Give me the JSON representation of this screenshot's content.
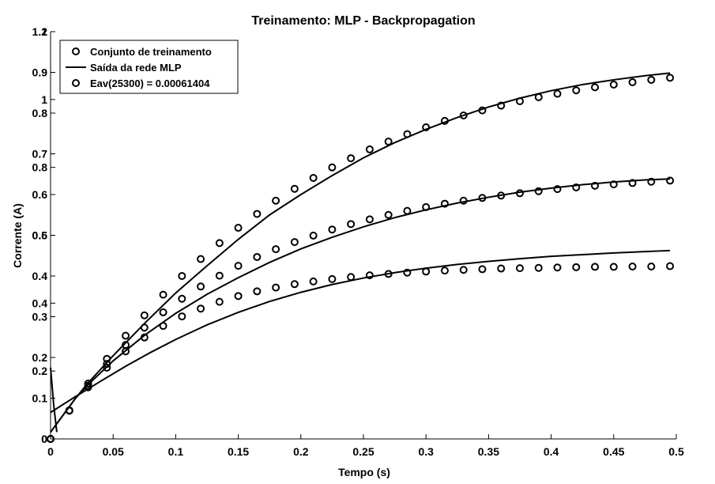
{
  "chart_data": {
    "type": "scatter",
    "title": "Treinamento: MLP - Backpropagation",
    "xlabel": "Tempo (s)",
    "ylabel": "Corrente (A)",
    "xlim": [
      0,
      0.5
    ],
    "ylim_left": [
      0,
      1.2
    ],
    "ylim_overlay": [
      0,
      1.0
    ],
    "xticks": [
      "0",
      "0.05",
      "0.1",
      "0.15",
      "0.2",
      "0.25",
      "0.3",
      "0.35",
      "0.4",
      "0.45",
      "0.5"
    ],
    "yticks_left": [
      "0",
      "0.2",
      "0.4",
      "0.6",
      "0.8",
      "1",
      "1.2"
    ],
    "yticks_overlay": [
      "0",
      "0.1",
      "0.2",
      "0.3",
      "0.4",
      "0.5",
      "0.6",
      "0.7",
      "0.8",
      "0.9",
      "1"
    ],
    "grid": false,
    "legend_position": "top-left",
    "legend": [
      {
        "label": "Conjunto de treinamento",
        "marker": "circle"
      },
      {
        "label": "Saída da rede MLP",
        "marker": "line"
      },
      {
        "label": "Eav(25300) = 0.00061404",
        "marker": "circle"
      }
    ],
    "series": [
      {
        "kind": "points",
        "x": [
          0,
          0.015,
          0.03,
          0.045,
          0.06,
          0.075,
          0.09,
          0.105,
          0.12,
          0.135,
          0.15,
          0.165,
          0.18,
          0.195,
          0.21,
          0.225,
          0.24,
          0.255,
          0.27,
          0.285,
          0.3,
          0.315,
          0.33,
          0.345,
          0.36,
          0.375,
          0.39,
          0.405,
          0.42,
          0.435,
          0.45,
          0.465,
          0.48,
          0.495
        ],
        "y": [
          0,
          0.084,
          0.163,
          0.236,
          0.304,
          0.364,
          0.425,
          0.48,
          0.53,
          0.577,
          0.622,
          0.663,
          0.702,
          0.737,
          0.769,
          0.8,
          0.827,
          0.853,
          0.876,
          0.898,
          0.918,
          0.937,
          0.953,
          0.968,
          0.982,
          0.995,
          1.007,
          1.017,
          1.027,
          1.036,
          1.044,
          1.051,
          1.058,
          1.064
        ]
      },
      {
        "kind": "points",
        "x": [
          0,
          0.015,
          0.03,
          0.045,
          0.06,
          0.075,
          0.09,
          0.105,
          0.12,
          0.135,
          0.15,
          0.165,
          0.18,
          0.195,
          0.21,
          0.225,
          0.24,
          0.255,
          0.27,
          0.285,
          0.3,
          0.315,
          0.33,
          0.345,
          0.36,
          0.375,
          0.39,
          0.405,
          0.42,
          0.435,
          0.45,
          0.465,
          0.48,
          0.495
        ],
        "y": [
          0,
          0.084,
          0.157,
          0.221,
          0.277,
          0.328,
          0.373,
          0.413,
          0.449,
          0.481,
          0.51,
          0.536,
          0.559,
          0.58,
          0.599,
          0.617,
          0.633,
          0.647,
          0.66,
          0.672,
          0.683,
          0.693,
          0.702,
          0.71,
          0.717,
          0.724,
          0.73,
          0.736,
          0.741,
          0.746,
          0.75,
          0.754,
          0.758,
          0.761
        ]
      },
      {
        "kind": "points",
        "x": [
          0,
          0.015,
          0.03,
          0.045,
          0.06,
          0.075,
          0.09,
          0.105,
          0.12,
          0.135,
          0.15,
          0.165,
          0.18,
          0.195,
          0.21,
          0.225,
          0.24,
          0.255,
          0.27,
          0.285,
          0.3,
          0.315,
          0.33,
          0.345,
          0.36,
          0.375,
          0.39,
          0.405,
          0.42,
          0.435,
          0.45,
          0.465,
          0.48,
          0.495
        ],
        "y": [
          0,
          0.083,
          0.152,
          0.21,
          0.258,
          0.299,
          0.333,
          0.361,
          0.384,
          0.404,
          0.421,
          0.435,
          0.446,
          0.456,
          0.464,
          0.471,
          0.477,
          0.482,
          0.486,
          0.49,
          0.493,
          0.496,
          0.498,
          0.5,
          0.502,
          0.503,
          0.504,
          0.505,
          0.506,
          0.507,
          0.507,
          0.508,
          0.508,
          0.509
        ]
      },
      {
        "kind": "line",
        "x": [
          0,
          0.01,
          0.02,
          0.03,
          0.05,
          0.075,
          0.1,
          0.125,
          0.15,
          0.175,
          0.2,
          0.225,
          0.25,
          0.275,
          0.3,
          0.325,
          0.35,
          0.375,
          0.4,
          0.425,
          0.45,
          0.475,
          0.495
        ],
        "y": [
          0.02,
          0.07,
          0.12,
          0.165,
          0.245,
          0.34,
          0.43,
          0.51,
          0.588,
          0.66,
          0.72,
          0.776,
          0.828,
          0.873,
          0.912,
          0.947,
          0.978,
          1.004,
          1.026,
          1.044,
          1.058,
          1.07,
          1.078
        ]
      },
      {
        "kind": "line",
        "x": [
          0,
          0.01,
          0.02,
          0.03,
          0.05,
          0.075,
          0.1,
          0.125,
          0.15,
          0.175,
          0.2,
          0.225,
          0.25,
          0.275,
          0.3,
          0.325,
          0.35,
          0.375,
          0.4,
          0.425,
          0.45,
          0.475,
          0.495
        ],
        "y": [
          0.02,
          0.07,
          0.12,
          0.16,
          0.23,
          0.305,
          0.37,
          0.426,
          0.475,
          0.52,
          0.56,
          0.594,
          0.625,
          0.652,
          0.675,
          0.695,
          0.712,
          0.727,
          0.739,
          0.749,
          0.757,
          0.763,
          0.766
        ]
      },
      {
        "kind": "line",
        "x": [
          0,
          0.02,
          0.04,
          0.06,
          0.08,
          0.1,
          0.125,
          0.15,
          0.175,
          0.2,
          0.225,
          0.25,
          0.275,
          0.3,
          0.325,
          0.35,
          0.375,
          0.4,
          0.425,
          0.45,
          0.475,
          0.495
        ],
        "y": [
          0.078,
          0.125,
          0.17,
          0.214,
          0.255,
          0.293,
          0.336,
          0.373,
          0.405,
          0.432,
          0.455,
          0.474,
          0.49,
          0.503,
          0.514,
          0.523,
          0.531,
          0.538,
          0.543,
          0.548,
          0.552,
          0.555
        ]
      },
      {
        "kind": "line",
        "x": [
          0,
          0.0025,
          0.005
        ],
        "y": [
          0.21,
          0.1,
          0.02
        ]
      }
    ]
  }
}
